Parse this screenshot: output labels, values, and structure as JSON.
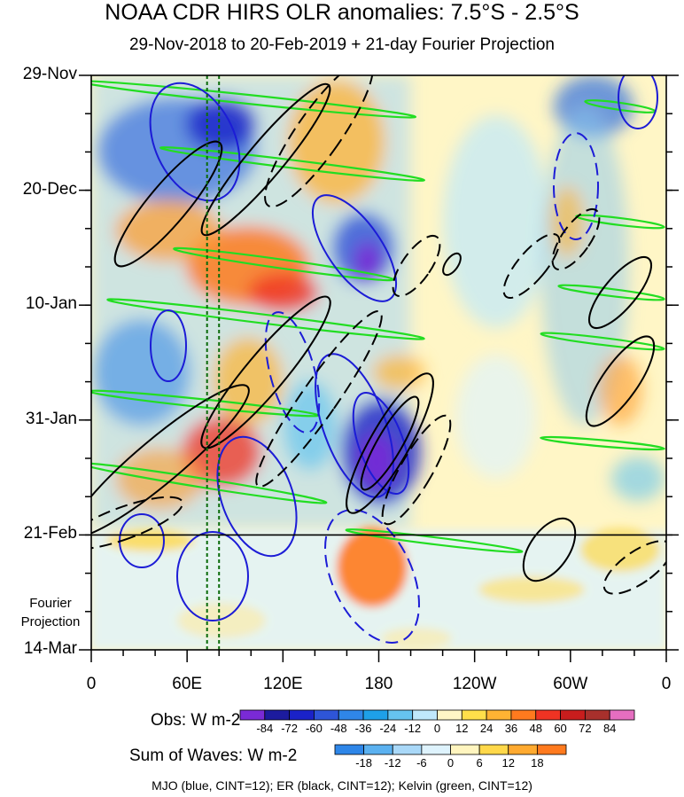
{
  "title": "NOAA CDR HIRS OLR anomalies: 7.5°S - 2.5°S",
  "subtitle": "29-Nov-2018 to 20-Feb-2019 + 21-day Fourier Projection",
  "projection_label": [
    "Fourier",
    "Projection"
  ],
  "caption": "MJO (blue, CINT=12); ER (black, CINT=12); Kelvin (green, CINT=12)",
  "colors": {
    "mjo": "#1c1cd6",
    "er": "#000000",
    "kelvin": "#22dd22",
    "meridian": "#0a6b0a"
  },
  "chart_data": {
    "type": "heatmap",
    "y_tick_labels": [
      "29-Nov",
      "20-Dec",
      "10-Jan",
      "31-Jan",
      "21-Feb",
      "14-Mar"
    ],
    "x_tick_labels": [
      "0",
      "60E",
      "120E",
      "180",
      "120W",
      "60W",
      "0"
    ],
    "x_values_deg_east": [
      0,
      60,
      120,
      180,
      240,
      300,
      360
    ],
    "y_dates": [
      "2018-11-29",
      "2018-12-20",
      "2019-01-10",
      "2019-01-31",
      "2019-02-21",
      "2019-03-14"
    ],
    "observation_end": "2019-02-20",
    "projection_start": "2019-02-21",
    "reference_longitudes_deg_east": [
      72.5,
      80
    ],
    "colorbars": [
      {
        "title": "Obs: W m-2",
        "labels": [
          "-84",
          "-72",
          "-60",
          "-48",
          "-36",
          "-24",
          "-12",
          "0",
          "12",
          "24",
          "36",
          "48",
          "60",
          "72",
          "84"
        ],
        "colors": [
          "#7a2ad6",
          "#1c1b9e",
          "#1a22c8",
          "#2e55d8",
          "#2f86e8",
          "#1ea0e8",
          "#66c4f0",
          "#bfe8fb",
          "#fff6c6",
          "#ffdf4a",
          "#ffb333",
          "#ff7a1e",
          "#f03323",
          "#c81d1d",
          "#a8302c",
          "#e56ec0"
        ]
      },
      {
        "title": "Sum of Waves: W m-2",
        "labels": [
          "-18",
          "-12",
          "-6",
          "0",
          "6",
          "12",
          "18"
        ],
        "colors": [
          "#2e86e8",
          "#5bb1f0",
          "#a9d8f8",
          "#def3fd",
          "#fff5bf",
          "#ffd84a",
          "#ffaa30",
          "#ff7a1e"
        ]
      }
    ]
  }
}
